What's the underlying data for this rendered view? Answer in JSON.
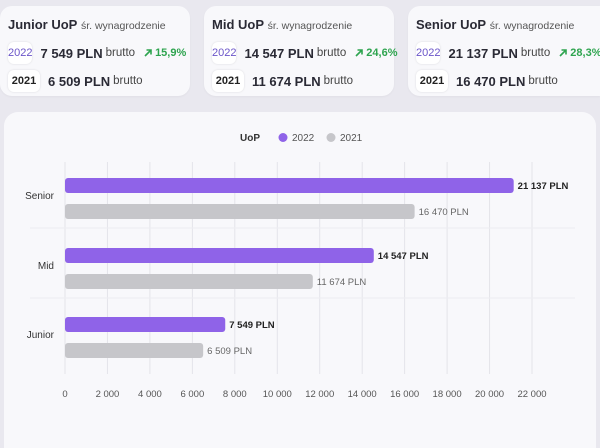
{
  "cards": [
    {
      "level": "Junior UoP",
      "subtitle": "śr. wynagrodzenie",
      "rows": [
        {
          "year": "2022",
          "amount": "7 549 PLN",
          "unit": "brutto",
          "change": "15,9%"
        },
        {
          "year": "2021",
          "amount": "6 509 PLN",
          "unit": "brutto"
        }
      ]
    },
    {
      "level": "Mid UoP",
      "subtitle": "śr. wynagrodzenie",
      "rows": [
        {
          "year": "2022",
          "amount": "14 547 PLN",
          "unit": "brutto",
          "change": "24,6%"
        },
        {
          "year": "2021",
          "amount": "11 674 PLN",
          "unit": "brutto"
        }
      ]
    },
    {
      "level": "Senior UoP",
      "subtitle": "śr. wynagrodzenie",
      "rows": [
        {
          "year": "2022",
          "amount": "21 137 PLN",
          "unit": "brutto",
          "change": "28,3%"
        },
        {
          "year": "2021",
          "amount": "16 470 PLN",
          "unit": "brutto"
        }
      ]
    }
  ],
  "colors": {
    "series_2022": "#8f63e8",
    "series_2021": "#c6c6ca",
    "up": "#2ea44f"
  },
  "chart_data": {
    "type": "bar",
    "orientation": "horizontal",
    "legend_title": "UoP",
    "legend_position": "top-center",
    "categories": [
      "Senior",
      "Mid",
      "Junior"
    ],
    "series": [
      {
        "name": "2022",
        "values": [
          21137,
          14547,
          7549
        ],
        "labels": [
          "21 137 PLN",
          "14 547 PLN",
          "7 549 PLN"
        ]
      },
      {
        "name": "2021",
        "values": [
          16470,
          11674,
          6509
        ],
        "labels": [
          "16 470 PLN",
          "11 674 PLN",
          "6 509 PLN"
        ]
      }
    ],
    "xlim": [
      0,
      22000
    ],
    "xticks": [
      0,
      2000,
      4000,
      6000,
      8000,
      10000,
      12000,
      14000,
      16000,
      18000,
      20000,
      22000
    ],
    "xtick_labels": [
      "0",
      "2 000",
      "4 000",
      "6 000",
      "8 000",
      "10 000",
      "12 000",
      "14 000",
      "16 000",
      "18 000",
      "20 000",
      "22 000"
    ],
    "grid": true
  }
}
